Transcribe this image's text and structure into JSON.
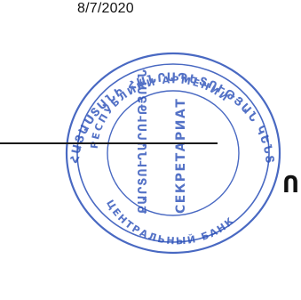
{
  "document": {
    "date": "8/7/2020",
    "edge_glyph": "Ո"
  },
  "stamp": {
    "ink_color": "#2a4fb8",
    "outer_text": "ՀԱՅԱՍՏԱՆԻ ՀԱՆՐԱՊԵՏՈՒԹՅԱՆ ԿԵՆՏՐՈՆԱԿԱՆ ԲԱՆԿ",
    "inner_text_top": "РЕСПУБЛИКИ АРМЕНИИ",
    "inner_text_bottom": "ЦЕНТРАЛЬНЫЙ БАНК",
    "center_line_1": "ՔԱՐՏՈՒՂԱՐՈՒԹՅՈՒՆ",
    "center_line_2": "СЕКРЕТАРИАТ"
  }
}
